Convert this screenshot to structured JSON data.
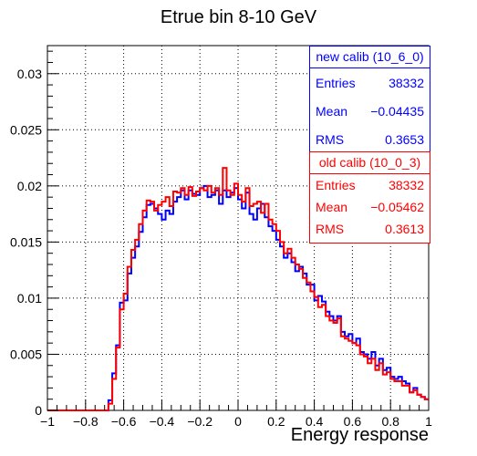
{
  "chart_data": {
    "type": "histogram",
    "title": "Etrue bin 8-10 GeV",
    "xlabel": "Energy response",
    "ylabel": "",
    "xlim": [
      -1,
      1
    ],
    "ylim": [
      0,
      0.0325
    ],
    "bins": 100,
    "grid": true,
    "xticks": [
      "−1",
      "−0.8",
      "−0.6",
      "−0.4",
      "−0.2",
      "0",
      "0.2",
      "0.4",
      "0.6",
      "0.8",
      "1"
    ],
    "yticks": [
      "0",
      "0.005",
      "0.01",
      "0.015",
      "0.02",
      "0.025",
      "0.03"
    ],
    "series": [
      {
        "name": "new calib (10_6_0)",
        "color": "#0000ff",
        "stats": {
          "entries_label": "Entries",
          "entries": "38332",
          "mean_label": "Mean",
          "mean": "−0.04435",
          "rms_label": "RMS",
          "rms": "0.3653"
        },
        "values": [
          0,
          0,
          0,
          0,
          0,
          0,
          0,
          0,
          0,
          0,
          0,
          0,
          0,
          0,
          0,
          0,
          0.0009,
          0.0033,
          0.0058,
          0.0096,
          0.0098,
          0.0122,
          0.0136,
          0.0146,
          0.0159,
          0.0172,
          0.0183,
          0.0184,
          0.018,
          0.0175,
          0.017,
          0.0178,
          0.0175,
          0.0186,
          0.019,
          0.0196,
          0.0188,
          0.0196,
          0.0193,
          0.0192,
          0.0198,
          0.02,
          0.019,
          0.0192,
          0.0196,
          0.0184,
          0.0196,
          0.019,
          0.0194,
          0.0198,
          0.0188,
          0.018,
          0.0194,
          0.0175,
          0.017,
          0.018,
          0.0184,
          0.0172,
          0.0164,
          0.016,
          0.0152,
          0.0146,
          0.0136,
          0.014,
          0.0132,
          0.0124,
          0.0128,
          0.0122,
          0.0112,
          0.0112,
          0.0098,
          0.0102,
          0.0097,
          0.0088,
          0.0084,
          0.008,
          0.0084,
          0.007,
          0.0066,
          0.0068,
          0.006,
          0.0064,
          0.0052,
          0.005,
          0.0046,
          0.0052,
          0.004,
          0.0046,
          0.0036,
          0.0038,
          0.003,
          0.0028,
          0.003,
          0.0026,
          0.0024,
          0.0016,
          0.002,
          0.0014,
          0.0012,
          0.001
        ]
      },
      {
        "name": "old calib (10_0_3)",
        "color": "#ff0000",
        "stats": {
          "entries_label": "Entries",
          "entries": "38332",
          "mean_label": "Mean",
          "mean": "−0.05462",
          "rms_label": "RMS",
          "rms": "0.3613"
        },
        "values": [
          0,
          0,
          0,
          0,
          0,
          0,
          0,
          0,
          0,
          0,
          0,
          0,
          0,
          0,
          0,
          0,
          0.0006,
          0.0028,
          0.0056,
          0.009,
          0.0104,
          0.0128,
          0.0143,
          0.0152,
          0.0166,
          0.0178,
          0.0187,
          0.0186,
          0.0178,
          0.0183,
          0.0186,
          0.019,
          0.0182,
          0.0195,
          0.0194,
          0.0198,
          0.0192,
          0.0199,
          0.0191,
          0.0195,
          0.0198,
          0.0196,
          0.02,
          0.0194,
          0.0198,
          0.0192,
          0.0216,
          0.0196,
          0.0192,
          0.0202,
          0.0192,
          0.0186,
          0.0198,
          0.0182,
          0.0184,
          0.0186,
          0.0176,
          0.0184,
          0.017,
          0.0166,
          0.016,
          0.015,
          0.014,
          0.0144,
          0.0136,
          0.013,
          0.0126,
          0.0118,
          0.0114,
          0.0106,
          0.0101,
          0.0092,
          0.0094,
          0.0084,
          0.008,
          0.0078,
          0.0082,
          0.0066,
          0.0064,
          0.0062,
          0.006,
          0.0058,
          0.005,
          0.0048,
          0.0042,
          0.0046,
          0.0036,
          0.0042,
          0.0032,
          0.0034,
          0.0028,
          0.0026,
          0.0026,
          0.0022,
          0.0022,
          0.0016,
          0.0018,
          0.0014,
          0.0012,
          0.001
        ]
      }
    ]
  }
}
